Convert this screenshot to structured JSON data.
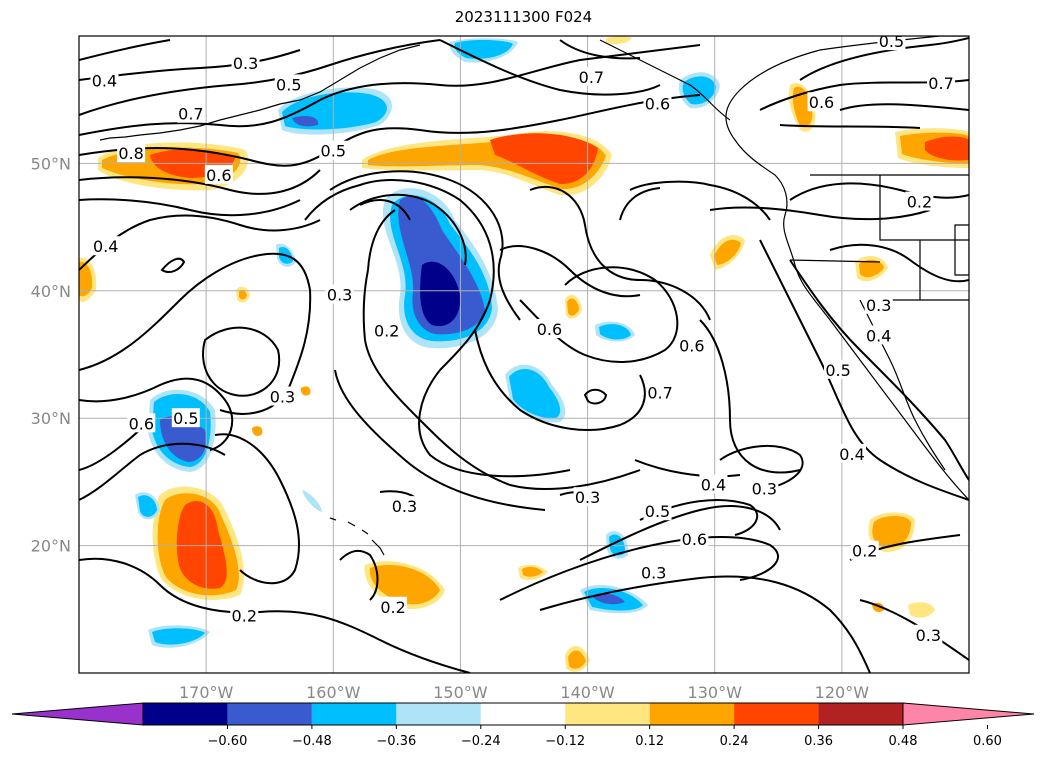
{
  "title": "2023111300 F024",
  "map": {
    "lon_range": [
      -180,
      -110
    ],
    "lat_range": [
      10,
      60
    ],
    "gridlines": true,
    "lon_ticks": [
      {
        "value": -170,
        "label": "170°W"
      },
      {
        "value": -160,
        "label": "160°W"
      },
      {
        "value": -150,
        "label": "150°W"
      },
      {
        "value": -140,
        "label": "140°W"
      },
      {
        "value": -130,
        "label": "130°W"
      },
      {
        "value": -120,
        "label": "120°W"
      }
    ],
    "lat_ticks": [
      {
        "value": 20,
        "label": "20°N"
      },
      {
        "value": 30,
        "label": "30°N"
      },
      {
        "value": 40,
        "label": "40°N"
      },
      {
        "value": 50,
        "label": "50°N"
      }
    ]
  },
  "colorbar": {
    "extend": "both",
    "levels": [
      "-0.60",
      "-0.48",
      "-0.36",
      "-0.24",
      "-0.12",
      "0.12",
      "0.24",
      "0.36",
      "0.48",
      "0.60"
    ],
    "colors": [
      "#9932cc",
      "#00008b",
      "#3a5bcf",
      "#00bfff",
      "#aee3f8",
      "#ffffff",
      "#ffe680",
      "#ffa500",
      "#ff4500",
      "#b22222",
      "#ff85a8"
    ]
  },
  "contour_labels": [
    {
      "text": "0.3",
      "lon": -166.9,
      "lat": 57.9
    },
    {
      "text": "0.4",
      "lon": -178.0,
      "lat": 56.5
    },
    {
      "text": "0.5",
      "lon": -163.5,
      "lat": 56.2
    },
    {
      "text": "0.7",
      "lon": -171.2,
      "lat": 53.9
    },
    {
      "text": "0.8",
      "lon": -175.9,
      "lat": 50.8
    },
    {
      "text": "0.6",
      "lon": -169.0,
      "lat": 49.1
    },
    {
      "text": "0.5",
      "lon": -160.0,
      "lat": 51.0
    },
    {
      "text": "0.4",
      "lon": -177.9,
      "lat": 43.5
    },
    {
      "text": "0.3",
      "lon": -159.5,
      "lat": 39.7
    },
    {
      "text": "0.2",
      "lon": -155.8,
      "lat": 36.9
    },
    {
      "text": "0.3",
      "lon": -164.0,
      "lat": 31.7
    },
    {
      "text": "0.6",
      "lon": -175.1,
      "lat": 29.6
    },
    {
      "text": "0.5",
      "lon": -171.6,
      "lat": 30.0
    },
    {
      "text": "0.3",
      "lon": -154.4,
      "lat": 23.1
    },
    {
      "text": "0.2",
      "lon": -155.3,
      "lat": 15.2
    },
    {
      "text": "0.2",
      "lon": -167.0,
      "lat": 14.5
    },
    {
      "text": "0.7",
      "lon": -139.7,
      "lat": 56.8
    },
    {
      "text": "0.6",
      "lon": -134.5,
      "lat": 54.7
    },
    {
      "text": "0.5",
      "lon": -116.1,
      "lat": 59.6
    },
    {
      "text": "0.7",
      "lon": -112.2,
      "lat": 56.3
    },
    {
      "text": "0.6",
      "lon": -121.6,
      "lat": 54.8
    },
    {
      "text": "0.2",
      "lon": -113.9,
      "lat": 47.0
    },
    {
      "text": "0.6",
      "lon": -143.0,
      "lat": 37.0
    },
    {
      "text": "0.6",
      "lon": -131.8,
      "lat": 35.7
    },
    {
      "text": "0.7",
      "lon": -134.3,
      "lat": 32.0
    },
    {
      "text": "0.3",
      "lon": -117.1,
      "lat": 38.9
    },
    {
      "text": "0.4",
      "lon": -117.1,
      "lat": 36.5
    },
    {
      "text": "0.5",
      "lon": -120.3,
      "lat": 33.8
    },
    {
      "text": "0.4",
      "lon": -119.2,
      "lat": 27.2
    },
    {
      "text": "0.3",
      "lon": -126.1,
      "lat": 24.5
    },
    {
      "text": "0.4",
      "lon": -130.1,
      "lat": 24.8
    },
    {
      "text": "0.3",
      "lon": -140.0,
      "lat": 23.8
    },
    {
      "text": "0.5",
      "lon": -134.5,
      "lat": 22.7
    },
    {
      "text": "0.6",
      "lon": -131.6,
      "lat": 20.5
    },
    {
      "text": "0.3",
      "lon": -134.8,
      "lat": 17.9
    },
    {
      "text": "0.2",
      "lon": -118.2,
      "lat": 19.6
    },
    {
      "text": "0.3",
      "lon": -113.2,
      "lat": 13.0
    }
  ]
}
